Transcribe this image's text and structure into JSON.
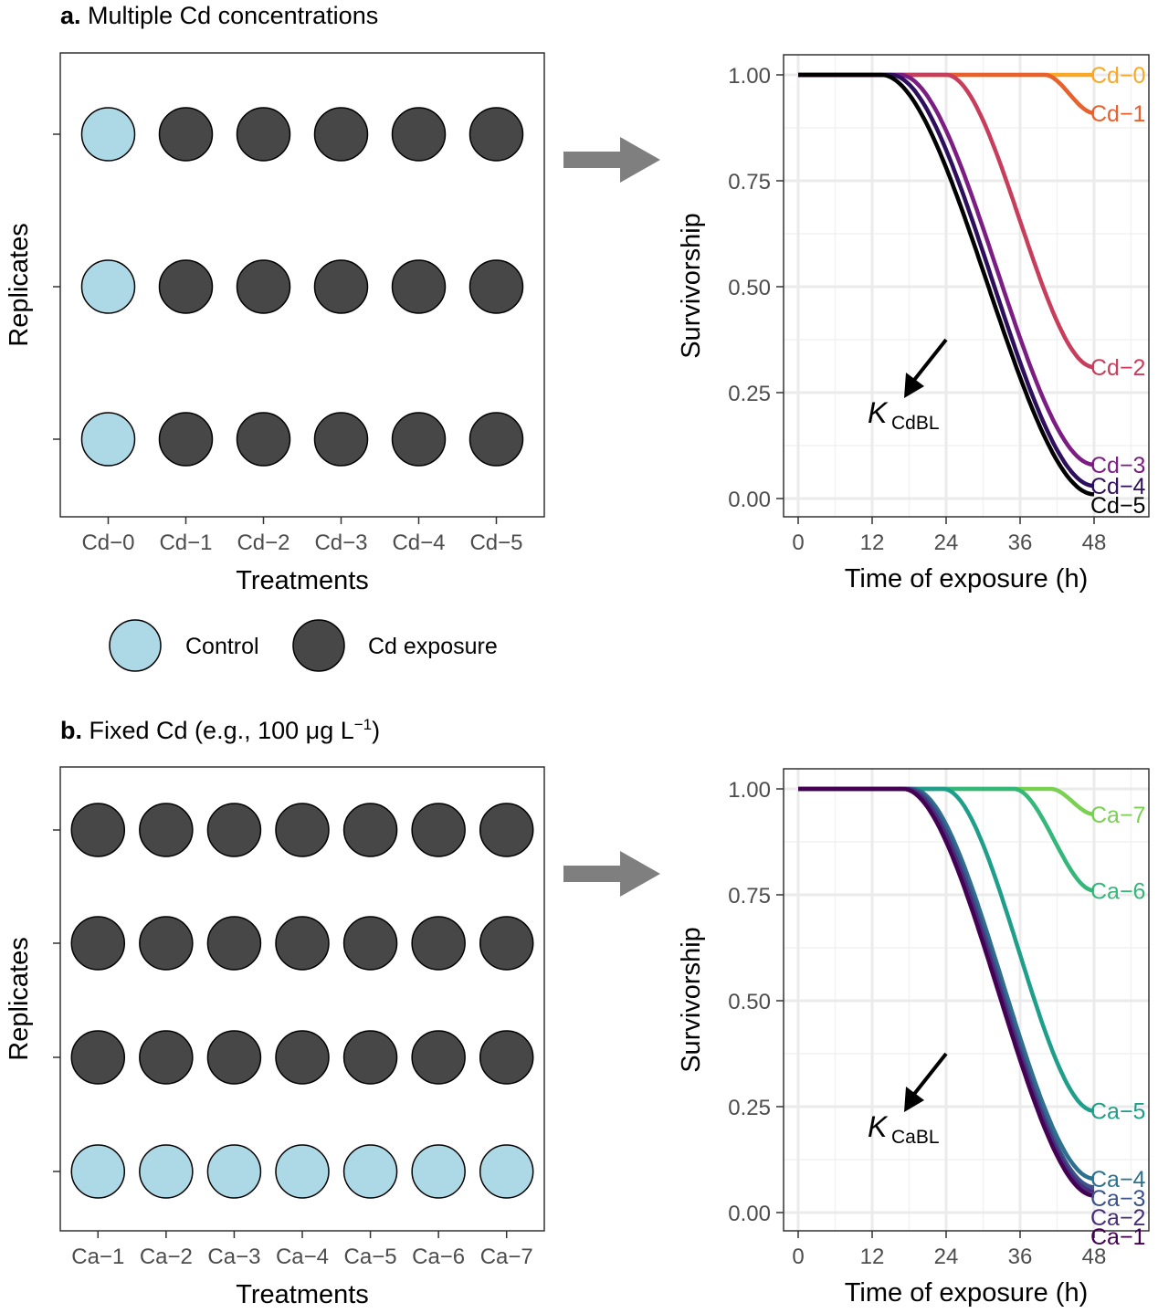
{
  "panels": [
    {
      "id": "a",
      "label": "a.",
      "title": "Multiple Cd concentrations",
      "design": {
        "ylabel": "Replicates",
        "xlabel": "Treatments",
        "treatments": [
          "Cd−0",
          "Cd−1",
          "Cd−2",
          "Cd−3",
          "Cd−4",
          "Cd−5"
        ],
        "replicates": 3,
        "cells": [
          [
            "control",
            "exposure",
            "exposure",
            "exposure",
            "exposure",
            "exposure"
          ],
          [
            "control",
            "exposure",
            "exposure",
            "exposure",
            "exposure",
            "exposure"
          ],
          [
            "control",
            "exposure",
            "exposure",
            "exposure",
            "exposure",
            "exposure"
          ]
        ]
      },
      "legend": [
        {
          "key": "control",
          "label": "Control",
          "color": "#ADD8E6"
        },
        {
          "key": "exposure",
          "label": "Cd exposure",
          "color": "#474747"
        }
      ]
    },
    {
      "id": "b",
      "label": "b.",
      "title_main": "Fixed Cd (e.g., 100 μg L",
      "title_sup": "−1",
      "title_end": ")",
      "design": {
        "ylabel": "Replicates",
        "xlabel": "Treatments",
        "treatments": [
          "Ca−1",
          "Ca−2",
          "Ca−3",
          "Ca−4",
          "Ca−5",
          "Ca−6",
          "Ca−7"
        ],
        "replicates": 4,
        "cells": [
          [
            "exposure",
            "exposure",
            "exposure",
            "exposure",
            "exposure",
            "exposure",
            "exposure"
          ],
          [
            "exposure",
            "exposure",
            "exposure",
            "exposure",
            "exposure",
            "exposure",
            "exposure"
          ],
          [
            "exposure",
            "exposure",
            "exposure",
            "exposure",
            "exposure",
            "exposure",
            "exposure"
          ],
          [
            "control",
            "control",
            "control",
            "control",
            "control",
            "control",
            "control"
          ]
        ]
      }
    }
  ],
  "colors": {
    "control": "#ADD8E6",
    "exposure": "#474747",
    "arrow": "#7F7F7F",
    "grid": "#EBEBEB",
    "axis_text": "#4D4D4D"
  },
  "chart_data": [
    {
      "type": "line",
      "title": "",
      "xlabel": "Time of exposure (h)",
      "ylabel": "Survivorship",
      "xlim": [
        -2,
        56
      ],
      "ylim": [
        -0.05,
        1.05
      ],
      "xticks": [
        0,
        12,
        24,
        36,
        48
      ],
      "xtick_labels": [
        "0",
        "12",
        "24",
        "36",
        "48"
      ],
      "yticks": [
        0,
        0.25,
        0.5,
        0.75,
        1.0
      ],
      "ytick_labels": [
        "0.00",
        "0.25",
        "0.50",
        "0.75",
        "1.00"
      ],
      "grid": true,
      "legend": "direct-labels-right",
      "annotation": {
        "text": "K",
        "subscript": "CdBL",
        "arrow": "pointing down-left"
      },
      "series": [
        {
          "name": "Cd−0",
          "color": "#F9A825",
          "onset": 48,
          "end_value": 1.0,
          "x": [
            0,
            12,
            24,
            36,
            48
          ],
          "values": [
            1.0,
            1.0,
            1.0,
            1.0,
            1.0
          ]
        },
        {
          "name": "Cd−1",
          "color": "#E8602C",
          "onset": 40,
          "end_value": 0.91,
          "x": [
            0,
            12,
            24,
            36,
            48
          ],
          "values": [
            1.0,
            1.0,
            1.0,
            1.0,
            0.91
          ]
        },
        {
          "name": "Cd−2",
          "color": "#C73E5C",
          "onset": 24,
          "end_value": 0.31,
          "x": [
            0,
            12,
            24,
            36,
            48
          ],
          "values": [
            1.0,
            1.0,
            1.0,
            0.78,
            0.31
          ]
        },
        {
          "name": "Cd−3",
          "color": "#7B1D82",
          "onset": 16.5,
          "end_value": 0.08,
          "x": [
            0,
            12,
            24,
            36,
            48
          ],
          "values": [
            1.0,
            1.0,
            0.85,
            0.33,
            0.08
          ]
        },
        {
          "name": "Cd−4",
          "color": "#2D0F5E",
          "onset": 15,
          "end_value": 0.03,
          "x": [
            0,
            12,
            24,
            36,
            48
          ],
          "values": [
            1.0,
            1.0,
            0.74,
            0.2,
            0.03
          ]
        },
        {
          "name": "Cd−5",
          "color": "#000000",
          "onset": 13.5,
          "end_value": 0.01,
          "x": [
            0,
            12,
            24,
            36,
            48
          ],
          "values": [
            1.0,
            1.0,
            0.63,
            0.13,
            0.01
          ]
        }
      ]
    },
    {
      "type": "line",
      "title": "",
      "xlabel": "Time of exposure (h)",
      "ylabel": "Survivorship",
      "xlim": [
        -2,
        56
      ],
      "ylim": [
        -0.05,
        1.05
      ],
      "xticks": [
        0,
        12,
        24,
        36,
        48
      ],
      "xtick_labels": [
        "0",
        "12",
        "24",
        "36",
        "48"
      ],
      "yticks": [
        0,
        0.25,
        0.5,
        0.75,
        1.0
      ],
      "ytick_labels": [
        "0.00",
        "0.25",
        "0.50",
        "0.75",
        "1.00"
      ],
      "grid": true,
      "legend": "direct-labels-right",
      "annotation": {
        "text": "K",
        "subscript": "CaBL",
        "arrow": "pointing down-left"
      },
      "series": [
        {
          "name": "Ca−7",
          "color": "#7AD151",
          "onset": 41,
          "end_value": 0.94,
          "x": [
            0,
            12,
            24,
            36,
            48
          ],
          "values": [
            1.0,
            1.0,
            1.0,
            1.0,
            0.94
          ]
        },
        {
          "name": "Ca−6",
          "color": "#35B779",
          "onset": 35,
          "end_value": 0.76,
          "x": [
            0,
            12,
            24,
            36,
            48
          ],
          "values": [
            1.0,
            1.0,
            1.0,
            1.0,
            0.76
          ]
        },
        {
          "name": "Ca−5",
          "color": "#1F9E89",
          "onset": 23.5,
          "end_value": 0.24,
          "x": [
            0,
            12,
            24,
            36,
            48
          ],
          "values": [
            1.0,
            1.0,
            1.0,
            0.7,
            0.24
          ]
        },
        {
          "name": "Ca−4",
          "color": "#2C728E",
          "onset": 18.5,
          "end_value": 0.08,
          "x": [
            0,
            12,
            24,
            36,
            48
          ],
          "values": [
            1.0,
            1.0,
            0.93,
            0.36,
            0.08
          ]
        },
        {
          "name": "Ca−3",
          "color": "#3B528B",
          "onset": 18,
          "end_value": 0.06,
          "x": [
            0,
            12,
            24,
            36,
            48
          ],
          "values": [
            1.0,
            1.0,
            0.91,
            0.31,
            0.06
          ]
        },
        {
          "name": "Ca−2",
          "color": "#472D7B",
          "onset": 17.5,
          "end_value": 0.05,
          "x": [
            0,
            12,
            24,
            36,
            48
          ],
          "values": [
            1.0,
            1.0,
            0.89,
            0.28,
            0.05
          ]
        },
        {
          "name": "Ca−1",
          "color": "#440154",
          "onset": 17,
          "end_value": 0.04,
          "x": [
            0,
            12,
            24,
            36,
            48
          ],
          "values": [
            1.0,
            1.0,
            0.87,
            0.25,
            0.04
          ]
        }
      ]
    }
  ]
}
